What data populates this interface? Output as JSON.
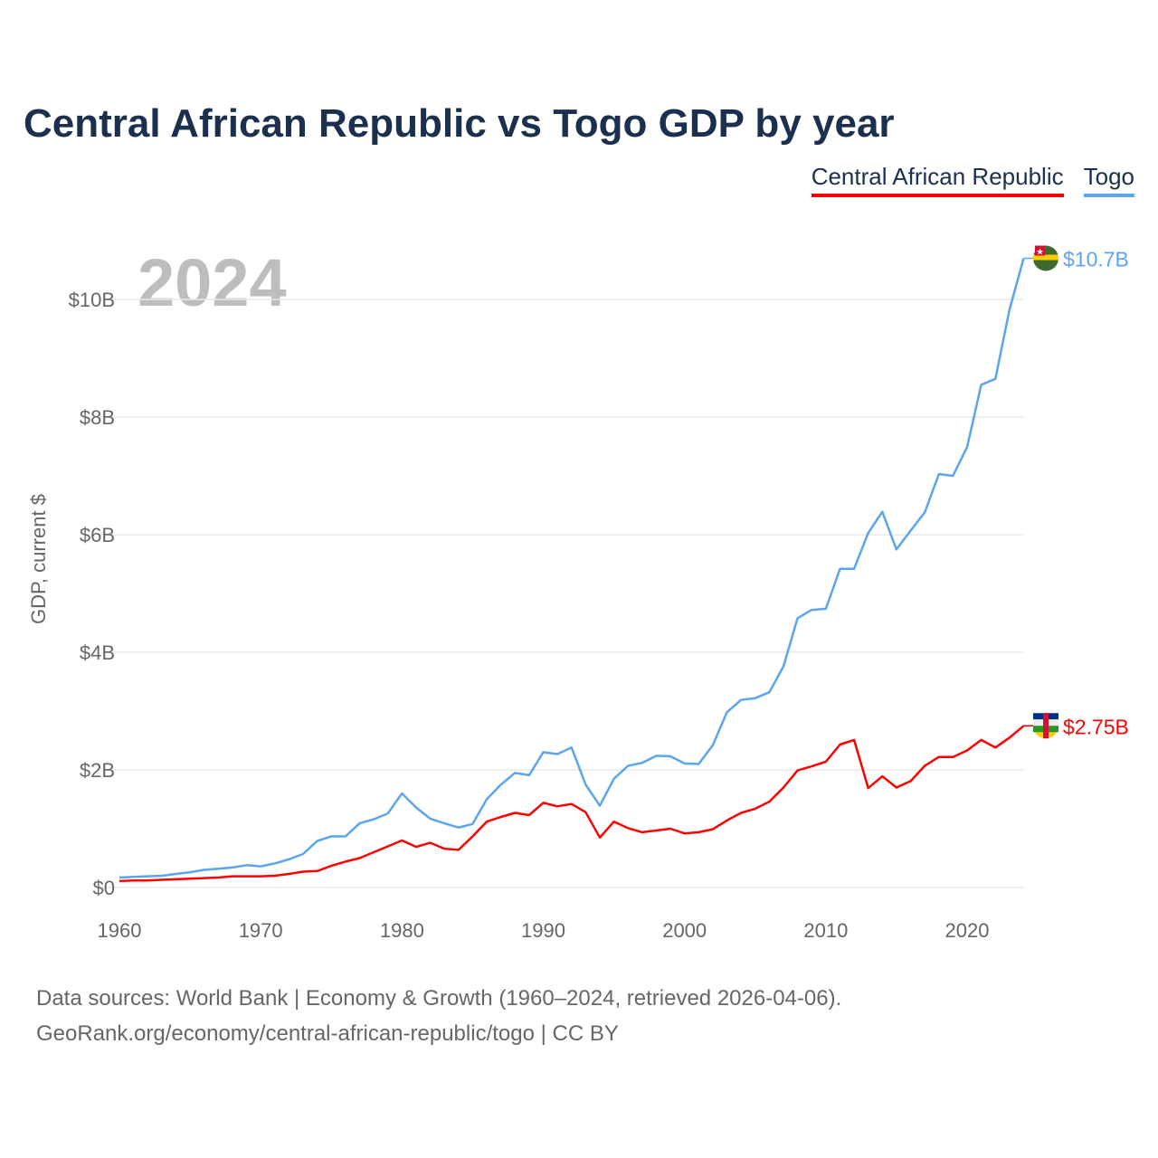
{
  "chart_data": {
    "type": "line",
    "title": "Central African Republic vs Togo GDP by year",
    "ylabel": "GDP, current $",
    "xlabel": "",
    "year_label": "2024",
    "xlim": [
      1960,
      2024
    ],
    "ylim": [
      0,
      11
    ],
    "grid": true,
    "legend_placement": "top-right",
    "x_ticks": [
      1960,
      1970,
      1980,
      1990,
      2000,
      2010,
      2020
    ],
    "y_ticks": [
      {
        "v": 0,
        "label": "$0"
      },
      {
        "v": 2,
        "label": "$2B"
      },
      {
        "v": 4,
        "label": "$4B"
      },
      {
        "v": 6,
        "label": "$6B"
      },
      {
        "v": 8,
        "label": "$8B"
      },
      {
        "v": 10,
        "label": "$10B"
      }
    ],
    "series": [
      {
        "name": "Central African Republic",
        "color": "#ff0000",
        "end_label": "$2.75B",
        "flag": "central-african-republic-flag",
        "values": [
          0.11,
          0.12,
          0.12,
          0.13,
          0.14,
          0.15,
          0.16,
          0.17,
          0.19,
          0.19,
          0.19,
          0.2,
          0.23,
          0.27,
          0.28,
          0.37,
          0.44,
          0.5,
          0.6,
          0.7,
          0.8,
          0.69,
          0.76,
          0.66,
          0.64,
          0.87,
          1.12,
          1.2,
          1.27,
          1.23,
          1.44,
          1.38,
          1.42,
          1.28,
          0.85,
          1.12,
          1.01,
          0.94,
          0.97,
          1.0,
          0.92,
          0.94,
          0.99,
          1.14,
          1.27,
          1.34,
          1.46,
          1.7,
          1.99,
          2.06,
          2.14,
          2.43,
          2.51,
          1.69,
          1.89,
          1.7,
          1.81,
          2.07,
          2.22,
          2.22,
          2.33,
          2.51,
          2.38,
          2.55,
          2.75
        ]
      },
      {
        "name": "Togo",
        "color": "#5aa5ee",
        "end_label": "$10.7B",
        "flag": "togo-flag",
        "values": [
          0.17,
          0.18,
          0.19,
          0.2,
          0.23,
          0.26,
          0.3,
          0.32,
          0.34,
          0.38,
          0.36,
          0.41,
          0.48,
          0.57,
          0.79,
          0.87,
          0.87,
          1.09,
          1.16,
          1.26,
          1.6,
          1.36,
          1.17,
          1.09,
          1.02,
          1.08,
          1.5,
          1.75,
          1.95,
          1.91,
          2.3,
          2.27,
          2.38,
          1.75,
          1.39,
          1.85,
          2.07,
          2.12,
          2.24,
          2.23,
          2.11,
          2.1,
          2.42,
          2.98,
          3.19,
          3.22,
          3.32,
          3.76,
          4.58,
          4.72,
          4.74,
          5.42,
          5.42,
          6.03,
          6.39,
          5.75,
          6.07,
          6.38,
          7.03,
          7.0,
          7.49,
          8.55,
          8.65,
          9.83,
          10.7
        ]
      }
    ]
  },
  "footer": {
    "line1": "Data sources: World Bank | Economy & Growth (1960–2024, retrieved 2026-04-06).",
    "line2": "GeoRank.org/economy/central-african-republic/togo | CC BY"
  }
}
